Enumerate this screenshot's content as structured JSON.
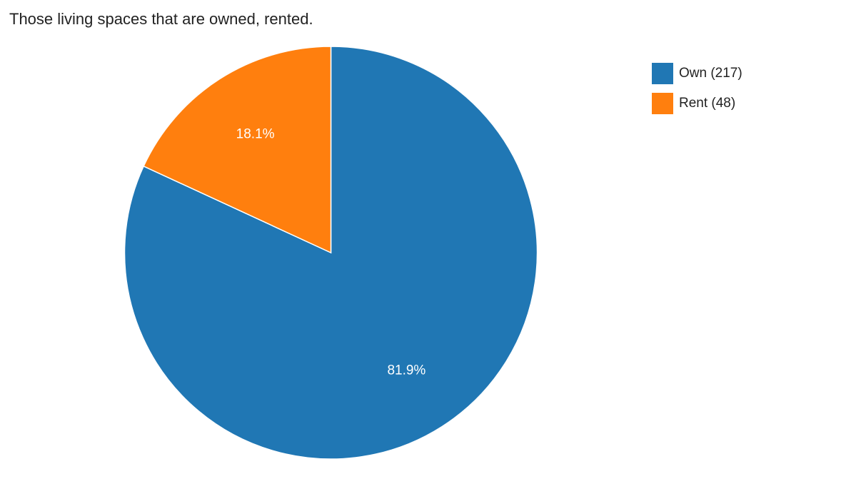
{
  "chart_data": {
    "type": "pie",
    "title": "Those living spaces that are owned, rented.",
    "slices": [
      {
        "name": "Own",
        "label": "Own (217)",
        "value": 217,
        "percent_label": "81.9%",
        "color": "#2077b4"
      },
      {
        "name": "Rent",
        "label": "Rent (48)",
        "value": 48,
        "percent_label": "18.1%",
        "color": "#ff7f0e"
      }
    ],
    "legend_position": "top-right"
  }
}
